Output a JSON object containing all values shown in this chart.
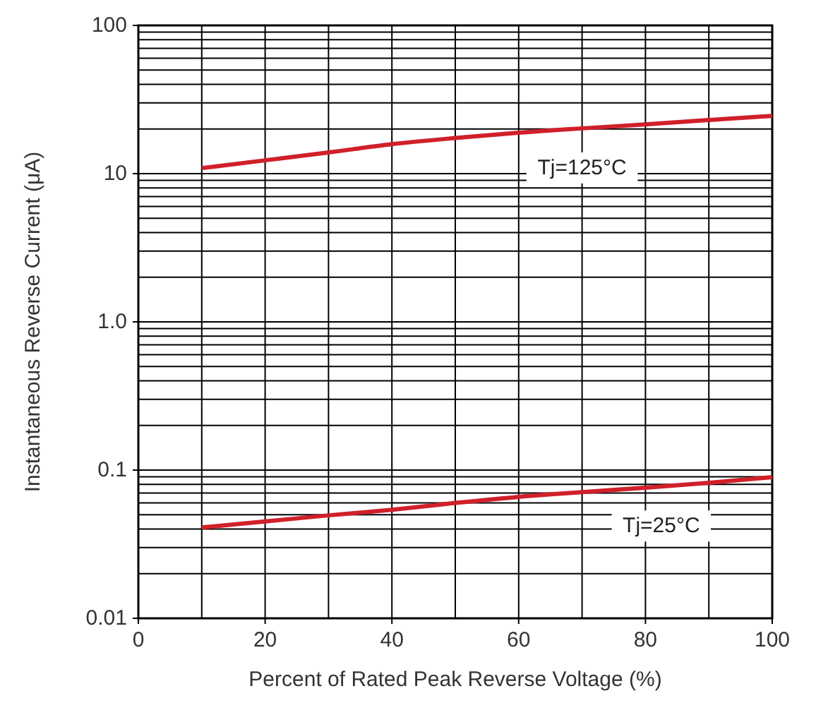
{
  "chart_data": {
    "type": "line",
    "xlabel": "Percent of Rated Peak Reverse Voltage (%)",
    "ylabel": "Instantaneous Reverse Current (μA)",
    "log": "y",
    "grid": true,
    "marker": "none",
    "line_style": "solid",
    "xlim": [
      0,
      100
    ],
    "xticks": [
      0,
      20,
      40,
      60,
      80,
      100
    ],
    "ylim": [
      0.01,
      100
    ],
    "yticks": [
      {
        "value": 0.01,
        "label": "0.01"
      },
      {
        "value": 0.1,
        "label": "0.1"
      },
      {
        "value": 1,
        "label": "1.0"
      },
      {
        "value": 10,
        "label": "10"
      },
      {
        "value": 100,
        "label": "100"
      }
    ],
    "series": [
      {
        "name": "Tj=125°C",
        "color": "#d0202a",
        "x": [
          10,
          20,
          30,
          40,
          50,
          60,
          70,
          80,
          90,
          100
        ],
        "values": [
          10.9,
          12.3,
          13.9,
          15.8,
          17.4,
          18.9,
          20.2,
          21.5,
          23.0,
          24.5
        ]
      },
      {
        "name": "Tj=25°C",
        "color": "#d0202a",
        "x": [
          10,
          20,
          30,
          40,
          50,
          60,
          70,
          80,
          90,
          100
        ],
        "values": [
          0.041,
          0.045,
          0.0495,
          0.054,
          0.06,
          0.066,
          0.071,
          0.076,
          0.082,
          0.0896
        ]
      }
    ]
  }
}
